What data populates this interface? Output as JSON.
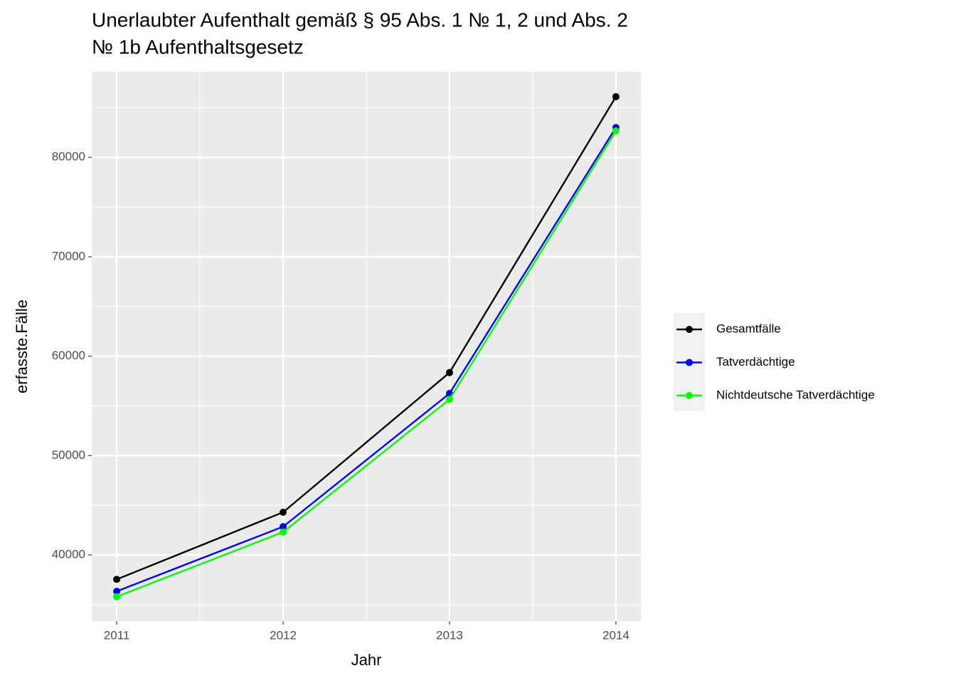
{
  "chart_data": {
    "type": "line",
    "title": [
      "Unerlaubter Aufenthalt gemäß § 95 Abs. 1 № 1, 2 und Abs. 2",
      "№ 1b Aufenthaltsgesetz"
    ],
    "x_label": "Jahr",
    "y_label": "erfasste.Fälle",
    "x": [
      2011,
      2012,
      2013,
      2014
    ],
    "series": [
      {
        "name": "Gesamtfälle",
        "color": "#000000",
        "values": [
          37550,
          44300,
          58350,
          86100
        ]
      },
      {
        "name": "Tatverdächtige",
        "color": "#0000ff",
        "values": [
          36350,
          42850,
          56250,
          83000
        ]
      },
      {
        "name": "Nichtdeutsche Tatverdächtige",
        "color": "#00ff00",
        "values": [
          35800,
          42300,
          55650,
          82650
        ]
      }
    ],
    "xlim": [
      2010.85,
      2014.15
    ],
    "xticks": [
      2011,
      2012,
      2013,
      2014
    ],
    "ylim": [
      33350,
      88600
    ],
    "yticks": [
      40000,
      50000,
      60000,
      70000,
      80000
    ],
    "grid": true,
    "legend": "right"
  }
}
